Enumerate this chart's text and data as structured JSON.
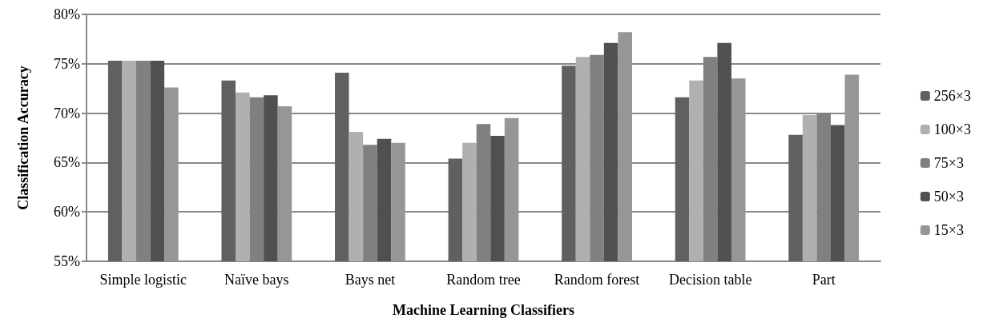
{
  "chart_data": {
    "type": "bar",
    "xlabel": "Machine Learning Classifiers",
    "ylabel": "Classification Accuracy",
    "categories": [
      "Simple logistic",
      "Naïve bays",
      "Bays net",
      "Random tree",
      "Random forest",
      "Decision table",
      "Part"
    ],
    "series": [
      {
        "name": "256×3",
        "color": "#606060",
        "values": [
          75.3,
          73.3,
          74.1,
          65.4,
          74.8,
          71.6,
          67.8
        ]
      },
      {
        "name": "100×3",
        "color": "#b0b0b0",
        "values": [
          75.3,
          72.1,
          68.1,
          67.0,
          75.7,
          73.3,
          69.8
        ]
      },
      {
        "name": "75×3",
        "color": "#808080",
        "values": [
          75.3,
          71.6,
          66.8,
          68.9,
          75.9,
          75.7,
          70.0
        ]
      },
      {
        "name": "50×3",
        "color": "#505050",
        "values": [
          75.3,
          71.8,
          67.4,
          67.7,
          77.1,
          77.1,
          68.8
        ]
      },
      {
        "name": "15×3",
        "color": "#969696",
        "values": [
          72.6,
          70.7,
          67.0,
          69.5,
          78.2,
          73.5,
          73.9
        ]
      }
    ],
    "ylim": [
      55,
      80
    ],
    "yticks": [
      {
        "value": 55,
        "label": "55%"
      },
      {
        "value": 60,
        "label": "60%"
      },
      {
        "value": 65,
        "label": "65%"
      },
      {
        "value": 70,
        "label": "70%"
      },
      {
        "value": 75,
        "label": "75%"
      },
      {
        "value": 80,
        "label": "80%"
      }
    ],
    "grid": "y",
    "legend": "right"
  }
}
